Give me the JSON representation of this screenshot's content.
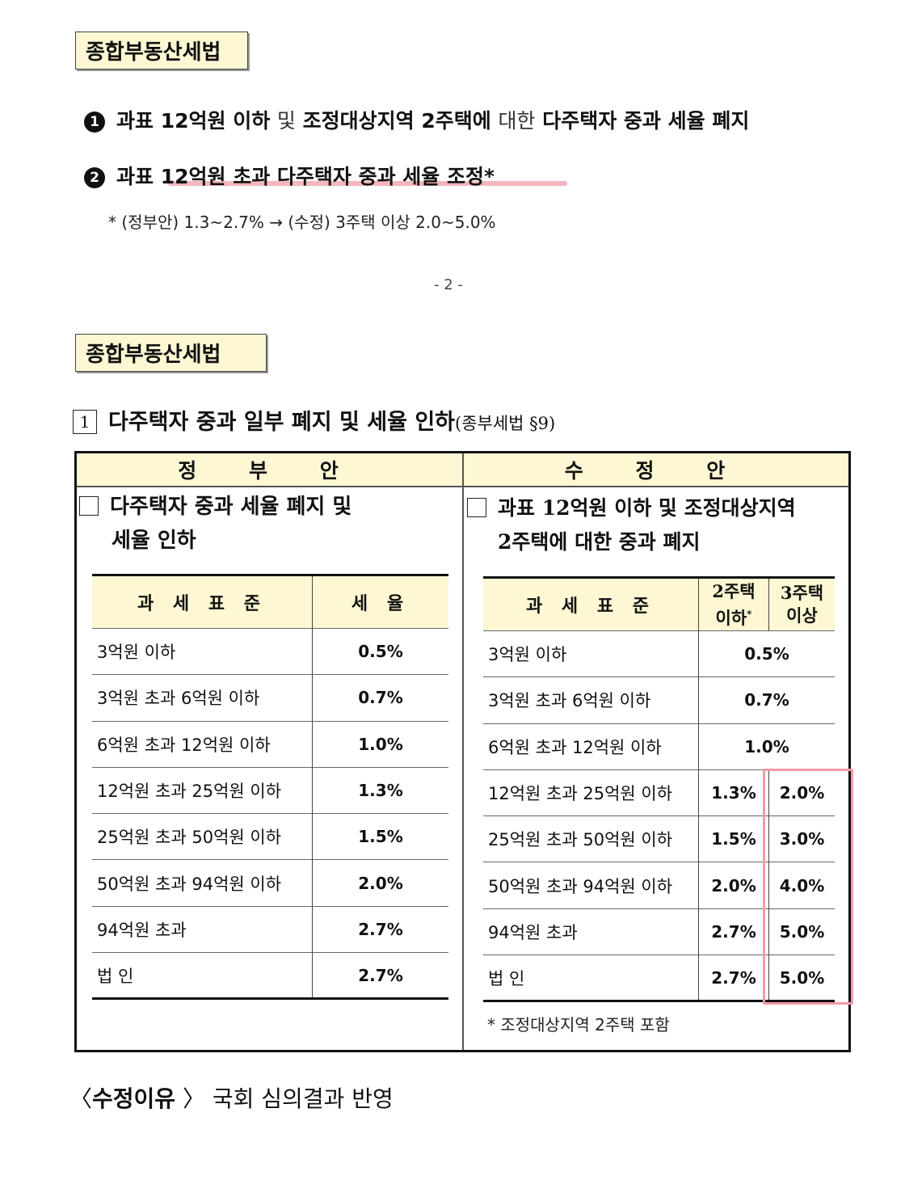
{
  "top": {
    "title": "종합부동산세법",
    "item1": {
      "bullet": "1",
      "parts": [
        "과표 12억원 이하",
        "및",
        "조정대상지역 2주택에",
        "대한",
        "다주택자 중과 세율 폐지"
      ]
    },
    "item2": {
      "bullet": "2",
      "text": "과표 12억원 초과 다주택자 중과 세율 조정*"
    },
    "note": "* (정부안) 1.3~2.7% → (수정) 3주택 이상 2.0~5.0%",
    "page_number": "- 2 -"
  },
  "section": {
    "title": "종합부동산세법",
    "heading_number": "1",
    "heading": "다주택자 중과 일부 폐지 및 세율 인하",
    "heading_ref": "(종부세법 §9)",
    "gov": {
      "column_title": "정 부 안",
      "subheading_line1": "다주택자 중과 세율 폐지 및",
      "subheading_line2": "세율 인하",
      "table_headers": [
        "과 세 표 준",
        "세 율"
      ],
      "rows": [
        {
          "bracket": "3억원 이하",
          "rate": "0.5%"
        },
        {
          "bracket": "3억원 초과 6억원 이하",
          "rate": "0.7%"
        },
        {
          "bracket": "6억원 초과 12억원 이하",
          "rate": "1.0%"
        },
        {
          "bracket": "12억원 초과 25억원 이하",
          "rate": "1.3%"
        },
        {
          "bracket": "25억원 초과 50억원 이하",
          "rate": "1.5%"
        },
        {
          "bracket": "50억원 초과 94억원 이하",
          "rate": "2.0%"
        },
        {
          "bracket": "94억원 초과",
          "rate": "2.7%"
        },
        {
          "bracket": "법 인",
          "rate": "2.7%"
        }
      ]
    },
    "amend": {
      "column_title": "수 정 안",
      "subheading_line1": "과표 12억원 이하 및 조정대상지역",
      "subheading_line2": "2주택에 대한 중과 폐지",
      "table_headers": [
        "과 세 표 준",
        "2주택 이하*",
        "3주택 이상"
      ],
      "header_2h_line1": "2주택",
      "header_2h_line2": "이하",
      "header_2h_mark": "*",
      "header_3h_line1": "3주택",
      "header_3h_line2": "이상",
      "rows": [
        {
          "bracket": "3억원 이하",
          "rate": "0.5%"
        },
        {
          "bracket": "3억원 초과 6억원 이하",
          "rate": "0.7%"
        },
        {
          "bracket": "6억원 초과 12억원 이하",
          "rate": "1.0%"
        },
        {
          "bracket": "12억원 초과 25억원 이하",
          "rate2": "1.3%",
          "rate3": "2.0%"
        },
        {
          "bracket": "25억원 초과 50억원 이하",
          "rate2": "1.5%",
          "rate3": "3.0%"
        },
        {
          "bracket": "50억원 초과 94억원 이하",
          "rate2": "2.0%",
          "rate3": "4.0%"
        },
        {
          "bracket": "94억원 초과",
          "rate2": "2.7%",
          "rate3": "5.0%"
        },
        {
          "bracket": "법 인",
          "rate2": "2.7%",
          "rate3": "5.0%"
        }
      ],
      "footnote": "* 조정대상지역 2주택 포함"
    }
  },
  "reason": {
    "label": "수정이유",
    "text": "국회 심의결과 반영"
  },
  "colors": {
    "header_fill": "#fdf8d3",
    "highlight_pink": "#f39aa6",
    "underline_pink": "#f4b6bd"
  }
}
